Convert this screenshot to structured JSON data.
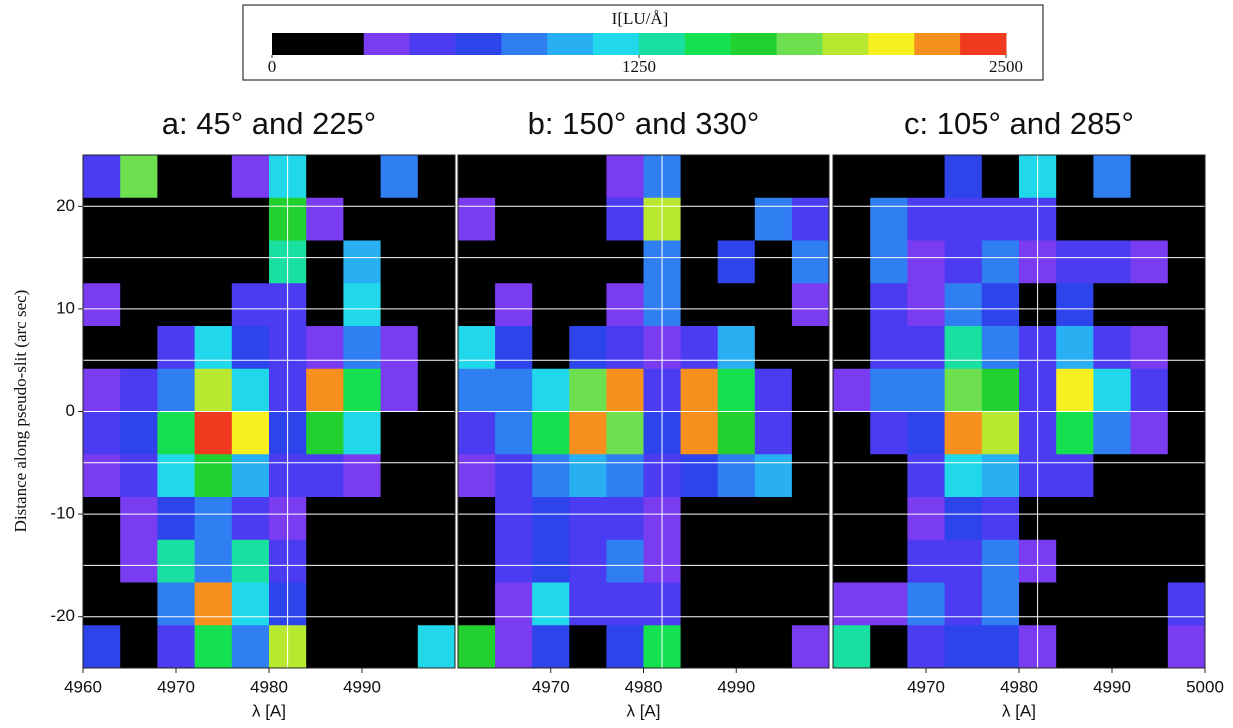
{
  "chart_data": {
    "type": "heatmap",
    "ylabel": "Distance along pseudo-slit (arc sec)",
    "ylim": [
      -25,
      25
    ],
    "ygrid": [
      -20,
      -15,
      -10,
      -5,
      0,
      5,
      10,
      15,
      20
    ],
    "xgrid": [
      4982
    ],
    "colorbar": {
      "label": "I[LU/Å]",
      "lim": [
        0,
        2500
      ],
      "ticks": [
        0,
        1250,
        2500
      ],
      "colors": [
        "#000000",
        "#000000",
        "#7a3cf0",
        "#4b3cf2",
        "#2c44ea",
        "#2f7ef2",
        "#29b0f2",
        "#20d8ea",
        "#19e0a0",
        "#14e050",
        "#22d030",
        "#6ee050",
        "#b8e830",
        "#f8f020",
        "#f8901f",
        "#f03a20"
      ]
    },
    "panels": [
      {
        "title": "a: 45° and 225°",
        "xlabel": "λ [A]",
        "xlim": [
          4960,
          5000
        ],
        "xticks": [
          4960,
          4970,
          4980,
          4990
        ],
        "yticks": [
          -20,
          -10,
          0,
          10,
          20
        ],
        "z": [
          [
            500,
            1800,
            0,
            300,
            400,
            1200,
            200,
            0,
            800,
            0
          ],
          [
            300,
            200,
            0,
            0,
            300,
            1600,
            400,
            300,
            0,
            300
          ],
          [
            300,
            0,
            0,
            0,
            300,
            1400,
            300,
            1000,
            0,
            200
          ],
          [
            400,
            0,
            0,
            200,
            500,
            500,
            200,
            1200,
            200,
            0
          ],
          [
            300,
            300,
            600,
            1200,
            700,
            500,
            400,
            900,
            400,
            0
          ],
          [
            400,
            600,
            900,
            2000,
            1200,
            600,
            2300,
            1500,
            400,
            200
          ],
          [
            500,
            700,
            1500,
            2400,
            2100,
            700,
            1600,
            1200,
            300,
            300
          ],
          [
            400,
            500,
            1200,
            1600,
            1000,
            500,
            500,
            400,
            200,
            0
          ],
          [
            300,
            400,
            700,
            900,
            600,
            400,
            300,
            300,
            0,
            0
          ],
          [
            300,
            400,
            1400,
            900,
            1300,
            600,
            0,
            200,
            0,
            0
          ],
          [
            200,
            300,
            900,
            2200,
            1200,
            700,
            0,
            0,
            300,
            0
          ],
          [
            700,
            300,
            600,
            1500,
            800,
            2000,
            0,
            0,
            300,
            1200
          ]
        ]
      },
      {
        "title": "b: 150° and 330°",
        "xlabel": "λ [A]",
        "xlim": [
          4960,
          5000
        ],
        "xticks": [
          4970,
          4980,
          4990
        ],
        "z": [
          [
            0,
            300,
            200,
            0,
            400,
            900,
            300,
            0,
            0,
            0
          ],
          [
            400,
            200,
            0,
            0,
            500,
            2000,
            300,
            300,
            800,
            500
          ],
          [
            200,
            0,
            0,
            0,
            300,
            900,
            200,
            700,
            300,
            800
          ],
          [
            300,
            400,
            0,
            300,
            400,
            800,
            200,
            300,
            300,
            400
          ],
          [
            1200,
            700,
            300,
            700,
            500,
            400,
            600,
            1000,
            300,
            300
          ],
          [
            800,
            900,
            1200,
            1800,
            2200,
            600,
            2200,
            1500,
            600,
            300
          ],
          [
            500,
            800,
            1500,
            2200,
            1800,
            700,
            2300,
            1600,
            500,
            200
          ],
          [
            400,
            600,
            900,
            1000,
            900,
            500,
            700,
            900,
            1000,
            200
          ],
          [
            300,
            600,
            700,
            600,
            500,
            400,
            300,
            300,
            200,
            0
          ],
          [
            200,
            500,
            700,
            500,
            900,
            400,
            0,
            300,
            0,
            0
          ],
          [
            300,
            400,
            1200,
            500,
            600,
            500,
            0,
            0,
            0,
            300
          ],
          [
            1600,
            400,
            700,
            300,
            700,
            1500,
            0,
            0,
            0,
            400
          ]
        ]
      },
      {
        "title": "c: 105° and 285°",
        "xlabel": "λ [A]",
        "xlim": [
          4960,
          5000
        ],
        "xticks": [
          4970,
          4980,
          4990,
          5000
        ],
        "z": [
          [
            0,
            0,
            300,
            700,
            300,
            1200,
            300,
            800,
            0,
            0
          ],
          [
            0,
            800,
            500,
            500,
            600,
            600,
            300,
            300,
            0,
            0
          ],
          [
            0,
            900,
            400,
            500,
            900,
            400,
            600,
            500,
            400,
            0
          ],
          [
            0,
            500,
            400,
            800,
            700,
            300,
            700,
            300,
            300,
            0
          ],
          [
            300,
            600,
            500,
            1300,
            900,
            500,
            1000,
            600,
            400,
            0
          ],
          [
            400,
            900,
            900,
            1800,
            1700,
            600,
            2100,
            1200,
            500,
            0
          ],
          [
            0,
            500,
            700,
            2200,
            1900,
            600,
            1500,
            900,
            400,
            0
          ],
          [
            0,
            300,
            500,
            1200,
            1000,
            500,
            500,
            300,
            200,
            0
          ],
          [
            0,
            200,
            400,
            700,
            500,
            300,
            200,
            200,
            0,
            0
          ],
          [
            0,
            300,
            500,
            600,
            800,
            400,
            200,
            100,
            0,
            300
          ],
          [
            400,
            400,
            900,
            600,
            800,
            300,
            0,
            300,
            0,
            600
          ],
          [
            1400,
            300,
            500,
            700,
            700,
            400,
            0,
            0,
            300,
            400
          ]
        ]
      }
    ]
  }
}
